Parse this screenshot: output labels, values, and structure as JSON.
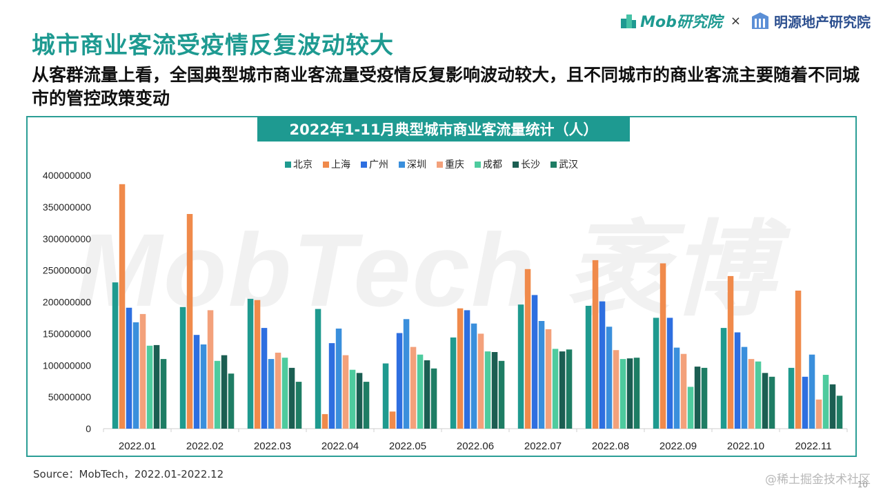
{
  "logos": {
    "mob": "Mob研究院",
    "times": "×",
    "mingyuan": "明源地产研究院"
  },
  "page": {
    "title": "城市商业客流受疫情反复波动较大",
    "subtitle": "从客群流量上看，全国典型城市商业客流量受疫情反复影响波动较大，且不同城市的商业客流主要随着不同城市的管控政策变动",
    "source": "Source：MobTech，2022.01-2022.12",
    "watermark": "MobTech 袤博",
    "juejin": "@稀土掘金技术社区",
    "page_number": "10"
  },
  "colors": {
    "accent": "#1e9a91"
  },
  "chart_data": {
    "type": "bar",
    "title": "2022年1-11月典型城市商业客流量统计（人）",
    "categories": [
      "2022.01",
      "2022.02",
      "2022.03",
      "2022.04",
      "2022.05",
      "2022.06",
      "2022.07",
      "2022.08",
      "2022.09",
      "2022.10",
      "2022.11"
    ],
    "ylim": [
      0,
      400000000
    ],
    "yticks": [
      0,
      50000000,
      100000000,
      150000000,
      200000000,
      250000000,
      300000000,
      350000000,
      400000000
    ],
    "legend_position": "top-center",
    "series": [
      {
        "name": "北京",
        "color": "#1f9a8f",
        "values": [
          231000000,
          192000000,
          205000000,
          189000000,
          103000000,
          144000000,
          196000000,
          194000000,
          175000000,
          159000000,
          96000000
        ]
      },
      {
        "name": "上海",
        "color": "#f08a4b",
        "values": [
          386000000,
          339000000,
          203000000,
          23000000,
          27000000,
          190000000,
          252000000,
          266000000,
          261000000,
          241000000,
          218000000
        ]
      },
      {
        "name": "广州",
        "color": "#2e6fe0",
        "values": [
          191000000,
          148000000,
          159000000,
          135000000,
          151000000,
          187000000,
          211000000,
          201000000,
          175000000,
          152000000,
          82000000
        ]
      },
      {
        "name": "深圳",
        "color": "#3a8fdc",
        "values": [
          168000000,
          133000000,
          110000000,
          158000000,
          173000000,
          166000000,
          170000000,
          161000000,
          128000000,
          129000000,
          117000000
        ]
      },
      {
        "name": "重庆",
        "color": "#f3a17b",
        "values": [
          181000000,
          187000000,
          120000000,
          116000000,
          129000000,
          150000000,
          157000000,
          124000000,
          118000000,
          110000000,
          46000000
        ]
      },
      {
        "name": "成都",
        "color": "#4ecb9e",
        "values": [
          131000000,
          107000000,
          112000000,
          93000000,
          117000000,
          122000000,
          126000000,
          110000000,
          66000000,
          106000000,
          85000000
        ]
      },
      {
        "name": "长沙",
        "color": "#1b5e52",
        "values": [
          132000000,
          116000000,
          96000000,
          88000000,
          108000000,
          121000000,
          122000000,
          111000000,
          98000000,
          88000000,
          70000000
        ]
      },
      {
        "name": "武汉",
        "color": "#1e7d64",
        "values": [
          110000000,
          87000000,
          74000000,
          74000000,
          95000000,
          107000000,
          125000000,
          112000000,
          96000000,
          82000000,
          52000000
        ]
      }
    ]
  }
}
